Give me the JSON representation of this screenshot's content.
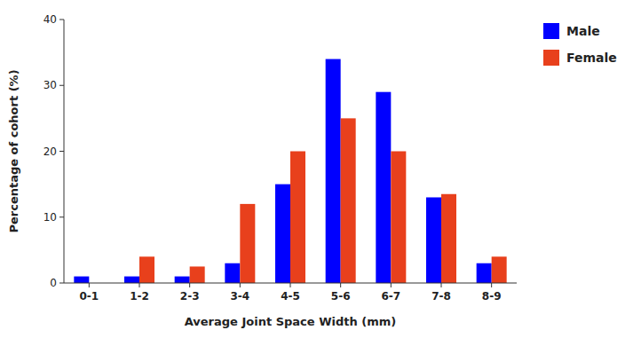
{
  "chart_data": {
    "type": "bar",
    "categories": [
      "0-1",
      "1-2",
      "2-3",
      "3-4",
      "4-5",
      "5-6",
      "6-7",
      "7-8",
      "8-9"
    ],
    "series": [
      {
        "name": "Male",
        "color": "#0000FF",
        "values": [
          1,
          1,
          1,
          3,
          15,
          34,
          29,
          13,
          3
        ]
      },
      {
        "name": "Female",
        "color": "#E8401C",
        "values": [
          0,
          4,
          2.5,
          12,
          20,
          25,
          20,
          13.5,
          4
        ]
      }
    ],
    "xlabel": "Average Joint Space Width (mm)",
    "ylabel": "Percentage of cohort (%)",
    "ylim": [
      0,
      40
    ],
    "yticks": [
      0,
      10,
      20,
      30,
      40
    ],
    "grid": false,
    "legend": "upper right"
  }
}
